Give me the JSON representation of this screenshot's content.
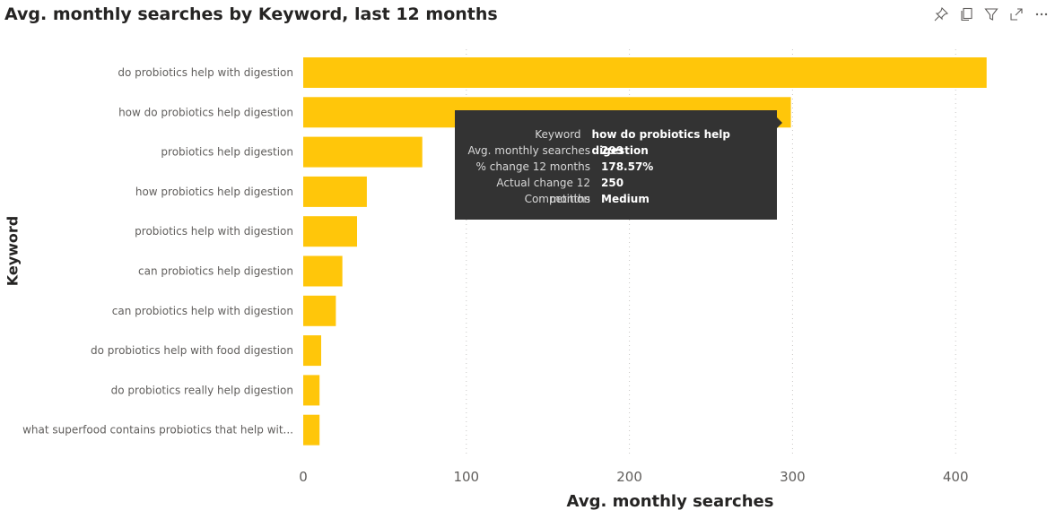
{
  "toolbar": {
    "icons": [
      "pin-icon",
      "copy-icon",
      "filter-icon",
      "focus-mode-icon",
      "more-options-icon"
    ]
  },
  "colors": {
    "bar": "#FFC60A",
    "tooltip_bg": "#333333"
  },
  "tooltip": {
    "rows": [
      {
        "key": "Keyword",
        "value": "how do probiotics help digestion"
      },
      {
        "key": "Avg. monthly searches",
        "value": "299"
      },
      {
        "key": "% change 12 months",
        "value": "178.57%"
      },
      {
        "key": "Actual change 12 months",
        "value": "250"
      },
      {
        "key": "Competition",
        "value": "Medium"
      }
    ]
  },
  "chart_data": {
    "type": "bar",
    "orientation": "horizontal",
    "title": "Avg. monthly searches by Keyword, last 12 months",
    "xlabel": "Avg. monthly searches",
    "ylabel": "Keyword",
    "xlim": [
      0,
      420
    ],
    "xticks": [
      0,
      100,
      200,
      300,
      400
    ],
    "grid": true,
    "categories": [
      "do probiotics help with digestion",
      "how do probiotics help digestion",
      "probiotics help digestion",
      "how probiotics help digestion",
      "probiotics help with digestion",
      "can probiotics help digestion",
      "can probiotics help with digestion",
      "do probiotics help with food digestion",
      "do probiotics really help digestion",
      "what superfood contains probiotics that help wit..."
    ],
    "values": [
      419,
      299,
      73,
      39,
      33,
      24,
      20,
      11,
      10,
      10
    ]
  }
}
